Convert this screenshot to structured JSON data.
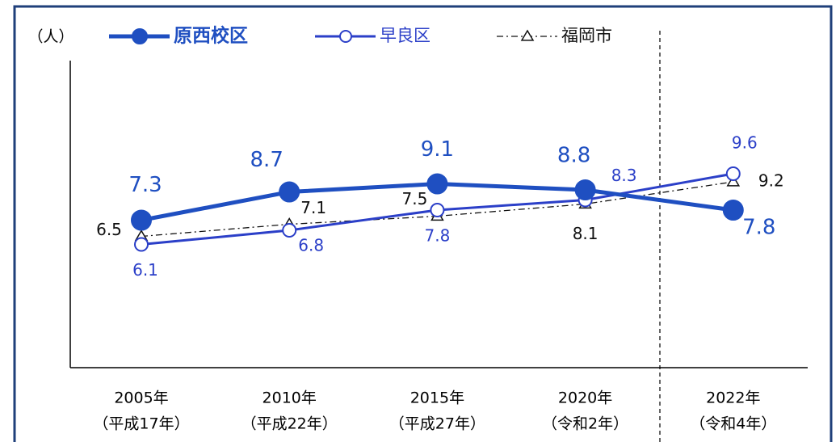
{
  "chart_data": {
    "type": "line",
    "y_unit": "（人）",
    "categories": [
      [
        "2005年",
        "（平成17年）"
      ],
      [
        "2010年",
        "（平成22年）"
      ],
      [
        "2015年",
        "（平成27年）"
      ],
      [
        "2020年",
        "（令和2年）"
      ],
      [
        "2022年",
        "（令和4年）"
      ]
    ],
    "series": [
      {
        "name": "原西校区",
        "color": "#1f4fc1",
        "values": [
          7.3,
          8.7,
          9.1,
          8.8,
          7.8
        ]
      },
      {
        "name": "早良区",
        "color": "#2b3fc8",
        "values": [
          6.1,
          6.8,
          7.8,
          8.3,
          9.6
        ]
      },
      {
        "name": "福岡市",
        "color": "#111111",
        "values": [
          6.5,
          7.1,
          7.5,
          8.1,
          9.2
        ]
      }
    ],
    "ylim": [
      0,
      15
    ]
  }
}
